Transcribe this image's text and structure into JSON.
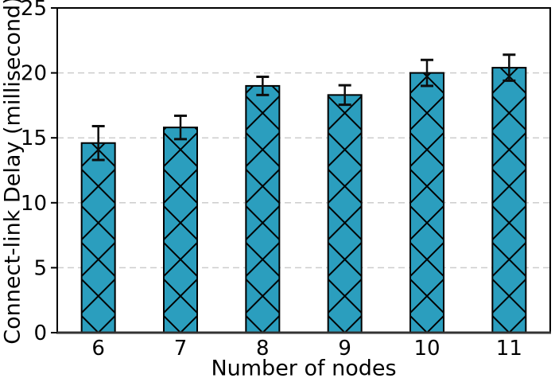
{
  "figure": {
    "background": "#ffffff"
  },
  "chart_data": {
    "type": "bar",
    "title": "",
    "xlabel": "Number of nodes",
    "ylabel": "Connect-link Delay (millisecond)",
    "categories": [
      "6",
      "7",
      "8",
      "9",
      "10",
      "11"
    ],
    "series": [
      {
        "name": "Connect-link Delay",
        "values": [
          14.6,
          15.8,
          19.0,
          18.3,
          20.0,
          20.4
        ],
        "errors": [
          1.3,
          0.9,
          0.7,
          0.75,
          1.0,
          1.0
        ]
      }
    ],
    "ylim": [
      0,
      25
    ],
    "yticks": [
      0,
      5,
      10,
      15,
      20,
      25
    ],
    "grid": "horizontal-dashed",
    "legend_position": "none",
    "bar_color": "#2B9EBE",
    "bar_edge_color": "#000000",
    "hatch": "x",
    "hatch_color": "#000000",
    "error_bar_color": "#0d0d0d",
    "grid_color": "#cccccc",
    "axis_color": "#000000",
    "bottom_spine_color": "#333333",
    "tick_label_color": "#000000"
  }
}
